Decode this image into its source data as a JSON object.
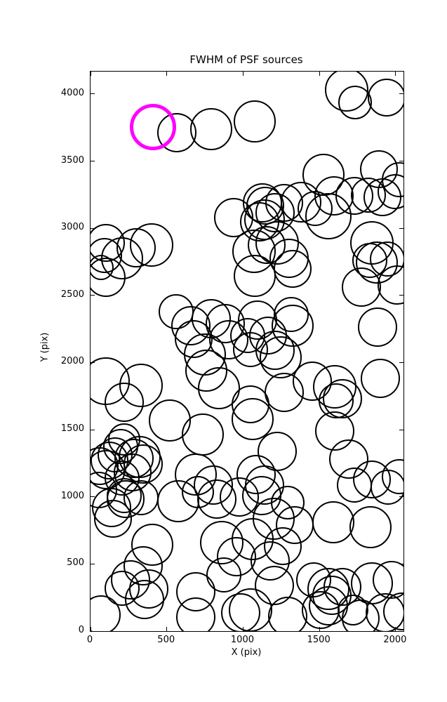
{
  "title": "FWHM of PSF sources",
  "axes": {
    "xlabel": "X (pix)",
    "ylabel": "Y (pix)"
  },
  "chart_data": {
    "type": "scatter",
    "title": "FWHM of PSF sources",
    "xlabel": "X (pix)",
    "ylabel": "Y (pix)",
    "xlim": [
      0,
      2051
    ],
    "ylim": [
      0,
      4167
    ],
    "xticks": [
      0,
      500,
      1000,
      1500,
      2000
    ],
    "yticks": [
      0,
      500,
      1000,
      1500,
      2000,
      2500,
      3000,
      3500,
      4000
    ],
    "grid": false,
    "legend": "none",
    "marker": "open-circle",
    "point_format": "[x_pix, y_pix, marker_radius_screen_px]",
    "colors": {
      "default": "#000000",
      "highlight": "#ff00ff",
      "background": "#ffffff"
    },
    "highlight_point": [
      409,
      3754,
      33
    ],
    "points": [
      [
        564,
        3714,
        28
      ],
      [
        790,
        3737,
        30
      ],
      [
        1078,
        3798,
        30
      ],
      [
        1680,
        4033,
        31
      ],
      [
        1734,
        3937,
        24
      ],
      [
        1941,
        3972,
        27
      ],
      [
        1527,
        3400,
        30
      ],
      [
        1888,
        3441,
        27
      ],
      [
        2025,
        3360,
        25
      ],
      [
        1595,
        3240,
        28
      ],
      [
        1730,
        3240,
        27
      ],
      [
        1819,
        3249,
        25
      ],
      [
        1911,
        3231,
        27
      ],
      [
        1995,
        3275,
        25
      ],
      [
        1128,
        3190,
        28
      ],
      [
        1144,
        3168,
        27
      ],
      [
        1267,
        3190,
        27
      ],
      [
        1380,
        3195,
        29
      ],
      [
        1473,
        3145,
        25
      ],
      [
        940,
        3080,
        28
      ],
      [
        1108,
        3049,
        28
      ],
      [
        1139,
        3066,
        29
      ],
      [
        1208,
        3118,
        28
      ],
      [
        1561,
        3092,
        33
      ],
      [
        1224,
        2891,
        31
      ],
      [
        1155,
        2874,
        27
      ],
      [
        1845,
        2891,
        31
      ],
      [
        1070,
        2830,
        31
      ],
      [
        100,
        2892,
        27
      ],
      [
        92,
        2796,
        25
      ],
      [
        69,
        2708,
        18
      ],
      [
        207,
        2778,
        30
      ],
      [
        299,
        2857,
        28
      ],
      [
        399,
        2874,
        31
      ],
      [
        101,
        2636,
        28
      ],
      [
        1875,
        2744,
        30
      ],
      [
        1829,
        2761,
        25
      ],
      [
        1944,
        2770,
        25
      ],
      [
        1300,
        2778,
        28
      ],
      [
        1323,
        2700,
        27
      ],
      [
        1078,
        2648,
        30
      ],
      [
        1775,
        2561,
        28
      ],
      [
        2010,
        2580,
        28
      ],
      [
        560,
        2377,
        25
      ],
      [
        659,
        2273,
        28
      ],
      [
        790,
        2325,
        28
      ],
      [
        882,
        2290,
        28
      ],
      [
        675,
        2177,
        27
      ],
      [
        905,
        2168,
        28
      ],
      [
        1093,
        2317,
        28
      ],
      [
        1316,
        2360,
        25
      ],
      [
        1323,
        2273,
        30
      ],
      [
        1162,
        2203,
        27
      ],
      [
        1032,
        2203,
        25
      ],
      [
        1883,
        2264,
        28
      ],
      [
        1047,
        2098,
        25
      ],
      [
        1247,
        2038,
        30
      ],
      [
        1210,
        2090,
        28
      ],
      [
        100,
        1863,
        34
      ],
      [
        330,
        1829,
        31
      ],
      [
        222,
        1706,
        28
      ],
      [
        759,
        1941,
        30
      ],
      [
        748,
        2060,
        30
      ],
      [
        843,
        1811,
        30
      ],
      [
        1270,
        1776,
        28
      ],
      [
        1454,
        1863,
        28
      ],
      [
        1599,
        1820,
        31
      ],
      [
        1653,
        1733,
        28
      ],
      [
        1610,
        1715,
        25
      ],
      [
        1898,
        1881,
        28
      ],
      [
        1050,
        1690,
        27
      ],
      [
        1060,
        1580,
        30
      ],
      [
        521,
        1567,
        30
      ],
      [
        736,
        1462,
        30
      ],
      [
        1599,
        1489,
        28
      ],
      [
        1224,
        1340,
        28
      ],
      [
        1691,
        1279,
        28
      ],
      [
        199,
        1375,
        25
      ],
      [
        222,
        1427,
        23
      ],
      [
        161,
        1314,
        25
      ],
      [
        123,
        1271,
        27
      ],
      [
        284,
        1288,
        28
      ],
      [
        322,
        1297,
        30
      ],
      [
        345,
        1244,
        28
      ],
      [
        60,
        1230,
        27
      ],
      [
        100,
        1201,
        28
      ],
      [
        276,
        1183,
        27
      ],
      [
        207,
        1140,
        25
      ],
      [
        690,
        1166,
        30
      ],
      [
        805,
        1088,
        28
      ],
      [
        1086,
        1166,
        28
      ],
      [
        1139,
        1088,
        28
      ],
      [
        1730,
        1088,
        25
      ],
      [
        1845,
        1131,
        27
      ],
      [
        1950,
        1070,
        25
      ],
      [
        2025,
        1150,
        25
      ],
      [
        222,
        1010,
        25
      ],
      [
        230,
        983,
        27
      ],
      [
        138,
        922,
        28
      ],
      [
        54,
        1053,
        26
      ],
      [
        330,
        992,
        25
      ],
      [
        575,
        966,
        30
      ],
      [
        705,
        1035,
        23
      ],
      [
        828,
        983,
        28
      ],
      [
        973,
        1000,
        28
      ],
      [
        1124,
        1010,
        28
      ],
      [
        1200,
        835,
        30
      ],
      [
        1293,
        957,
        24
      ],
      [
        145,
        835,
        27
      ],
      [
        406,
        643,
        30
      ],
      [
        345,
        486,
        28
      ],
      [
        261,
        382,
        28
      ],
      [
        383,
        312,
        28
      ],
      [
        207,
        321,
        25
      ],
      [
        859,
        660,
        31
      ],
      [
        958,
        556,
        28
      ],
      [
        874,
        417,
        25
      ],
      [
        690,
        294,
        28
      ],
      [
        1063,
        687,
        30
      ],
      [
        1262,
        634,
        27
      ],
      [
        1339,
        791,
        27
      ],
      [
        1178,
        521,
        28
      ],
      [
        1205,
        340,
        28
      ],
      [
        1591,
        809,
        30
      ],
      [
        1837,
        774,
        30
      ],
      [
        1561,
        312,
        30
      ],
      [
        1584,
        268,
        28
      ],
      [
        1561,
        190,
        28
      ],
      [
        1507,
        155,
        27
      ],
      [
        1653,
        330,
        27
      ],
      [
        1461,
        382,
        25
      ],
      [
        1845,
        356,
        30
      ],
      [
        1975,
        382,
        27
      ],
      [
        69,
        120,
        28
      ],
      [
        355,
        235,
        28
      ],
      [
        690,
        103,
        28
      ],
      [
        985,
        135,
        28
      ],
      [
        1047,
        155,
        31
      ],
      [
        1293,
        111,
        28
      ],
      [
        1772,
        94,
        27
      ],
      [
        1933,
        137,
        28
      ],
      [
        2041,
        146,
        27
      ],
      [
        1722,
        155,
        22
      ]
    ]
  }
}
